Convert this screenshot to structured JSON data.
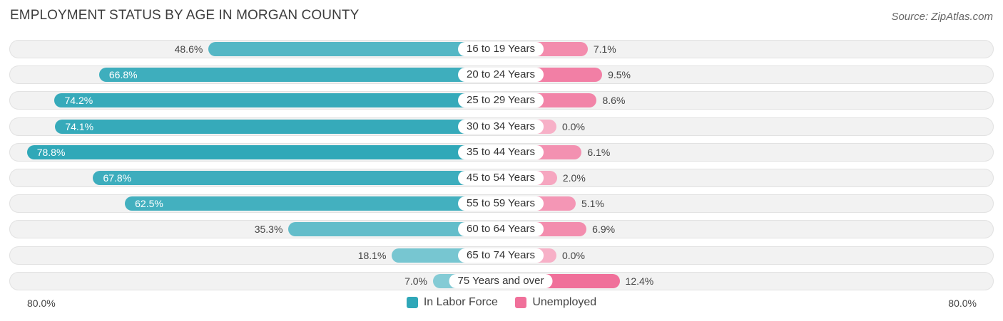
{
  "header": {
    "title": "EMPLOYMENT STATUS BY AGE IN MORGAN COUNTY",
    "source": "Source: ZipAtlas.com"
  },
  "colors": {
    "labor_force": "#2fa7b8",
    "unemployed": "#f0709a"
  },
  "axis": {
    "left_label": "80.0%",
    "right_label": "80.0%"
  },
  "legend": {
    "labor_force": "In Labor Force",
    "unemployed": "Unemployed"
  },
  "chart_data": {
    "type": "bar",
    "title": "EMPLOYMENT STATUS BY AGE IN MORGAN COUNTY",
    "orientation": "horizontal-diverging",
    "xlim": [
      0,
      80
    ],
    "categories": [
      "16 to 19 Years",
      "20 to 24 Years",
      "25 to 29 Years",
      "30 to 34 Years",
      "35 to 44 Years",
      "45 to 54 Years",
      "55 to 59 Years",
      "60 to 64 Years",
      "65 to 74 Years",
      "75 Years and over"
    ],
    "series": [
      {
        "name": "In Labor Force",
        "values": [
          48.6,
          66.8,
          74.2,
          74.1,
          78.8,
          67.8,
          62.5,
          35.3,
          18.1,
          7.0
        ],
        "labels": [
          "48.6%",
          "66.8%",
          "74.2%",
          "74.1%",
          "78.8%",
          "67.8%",
          "62.5%",
          "35.3%",
          "18.1%",
          "7.0%"
        ]
      },
      {
        "name": "Unemployed",
        "values": [
          7.1,
          9.5,
          8.6,
          0.0,
          6.1,
          2.0,
          5.1,
          6.9,
          0.0,
          12.4
        ],
        "labels": [
          "7.1%",
          "9.5%",
          "8.6%",
          "0.0%",
          "6.1%",
          "2.0%",
          "5.1%",
          "6.9%",
          "0.0%",
          "12.4%"
        ]
      }
    ],
    "legend_position": "bottom-center"
  }
}
